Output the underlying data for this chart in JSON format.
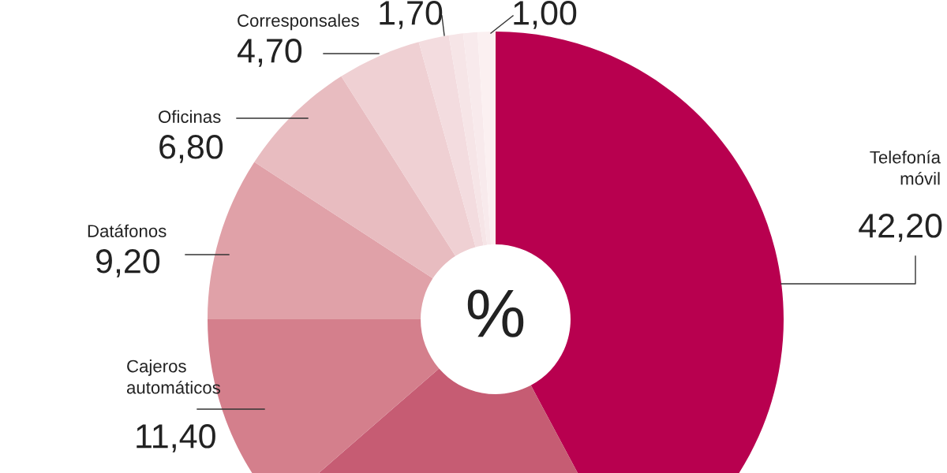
{
  "chart_data": {
    "type": "donut",
    "categories": [
      "Telefonía móvil",
      null,
      "Cajeros automáticos",
      "Datáfonos",
      "Oficinas",
      "Corresponsales",
      null,
      null,
      null,
      null
    ],
    "values": [
      42.2,
      21.4,
      11.4,
      9.2,
      6.8,
      4.7,
      1.7,
      0.8,
      0.8,
      1.0
    ],
    "value_labels": [
      "42,20",
      null,
      "11,40",
      "9,20",
      "6,80",
      "4,70",
      "1,70",
      null,
      null,
      "1,00"
    ],
    "colors": [
      "#b8004f",
      "#c65c73",
      "#d47f8c",
      "#e0a1a8",
      "#e8bcc0",
      "#efd0d3",
      "#f3dcdf",
      "#f6e5e7",
      "#f8eaec",
      "#fbf0f1"
    ],
    "annotations": [
      "%"
    ]
  }
}
